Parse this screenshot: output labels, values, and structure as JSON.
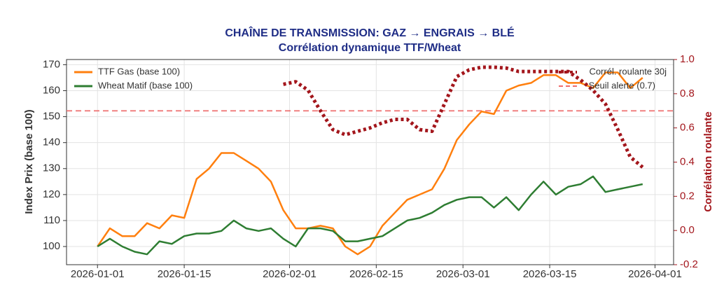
{
  "chart_data": {
    "type": "line",
    "title": "CHAÎNE DE TRANSMISSION: GAZ → ENGRAIS → BLÉ",
    "subtitle": "Corrélation dynamique TTF/Wheat",
    "ylabel": "Index Prix (base 100)",
    "y2label": "Corrélation roulante",
    "x": [
      "2026-01-01",
      "2026-01-03",
      "2026-01-05",
      "2026-01-07",
      "2026-01-09",
      "2026-01-11",
      "2026-01-13",
      "2026-01-15",
      "2026-01-17",
      "2026-01-19",
      "2026-01-21",
      "2026-01-23",
      "2026-01-25",
      "2026-01-27",
      "2026-01-29",
      "2026-01-31",
      "2026-02-02",
      "2026-02-04",
      "2026-02-06",
      "2026-02-08",
      "2026-02-10",
      "2026-02-12",
      "2026-02-14",
      "2026-02-16",
      "2026-02-18",
      "2026-02-20",
      "2026-02-22",
      "2026-02-24",
      "2026-02-26",
      "2026-02-28",
      "2026-03-02",
      "2026-03-04",
      "2026-03-06",
      "2026-03-08",
      "2026-03-10",
      "2026-03-12",
      "2026-03-14",
      "2026-03-16",
      "2026-03-18",
      "2026-03-20",
      "2026-03-22",
      "2026-03-24",
      "2026-03-26",
      "2026-03-28",
      "2026-03-30"
    ],
    "series": [
      {
        "name": "TTF Gas (base 100)",
        "color": "#ff7f0e",
        "values": [
          100,
          107,
          104,
          104,
          109,
          107,
          112,
          111,
          126,
          130,
          136,
          136,
          133,
          130,
          125,
          114,
          107,
          107,
          108,
          107,
          100,
          97,
          100,
          108,
          113,
          118,
          120,
          122,
          130,
          141,
          147,
          152,
          151,
          160,
          162,
          163,
          166,
          166,
          163,
          163,
          161,
          167,
          167,
          161,
          165
        ]
      },
      {
        "name": "Wheat Matif (base 100)",
        "color": "#2e7d32",
        "values": [
          100,
          103,
          100,
          98,
          97,
          102,
          101,
          104,
          105,
          105,
          106,
          110,
          107,
          106,
          107,
          103,
          100,
          107,
          107,
          106,
          102,
          102,
          103,
          104,
          107,
          110,
          111,
          113,
          116,
          118,
          119,
          119,
          115,
          119,
          114,
          120,
          125,
          120,
          123,
          124,
          127,
          121,
          122,
          123,
          124
        ]
      },
      {
        "name": "Corrél. roulante 30j",
        "color": "#a3161c",
        "axis": "y2",
        "style": "dotted",
        "values": [
          null,
          null,
          null,
          null,
          null,
          null,
          null,
          null,
          null,
          null,
          null,
          null,
          null,
          null,
          null,
          0.855,
          0.87,
          0.82,
          0.7,
          0.59,
          0.56,
          0.58,
          0.6,
          0.63,
          0.65,
          0.65,
          0.59,
          0.58,
          0.74,
          0.9,
          0.94,
          0.955,
          0.955,
          0.95,
          0.93,
          0.93,
          0.93,
          0.93,
          0.93,
          0.88,
          0.82,
          0.74,
          0.59,
          0.43,
          0.37
        ]
      }
    ],
    "threshold": {
      "name": "Seuil alerte (0.7)",
      "value": 0.7,
      "axis": "y2",
      "color": "#ef6b6b"
    },
    "xlim": [
      "2025-12-27",
      "2026-04-04"
    ],
    "xticks": [
      "2026-01-01",
      "2026-01-15",
      "2026-02-01",
      "2026-02-15",
      "2026-03-01",
      "2026-03-15",
      "2026-04-01"
    ],
    "ylim": [
      93,
      172
    ],
    "yticks": [
      100,
      110,
      120,
      130,
      140,
      150,
      160,
      170
    ],
    "y2lim": [
      -0.2,
      1.0
    ],
    "y2ticks": [
      -0.2,
      {
        "value": 0,
        "label": "0.0"
      },
      0.2,
      0.4,
      0.6,
      0.8,
      {
        "value": 1,
        "label": "1.0"
      }
    ],
    "grid": true,
    "legend": "upper left",
    "legend_y2": "upper right"
  }
}
